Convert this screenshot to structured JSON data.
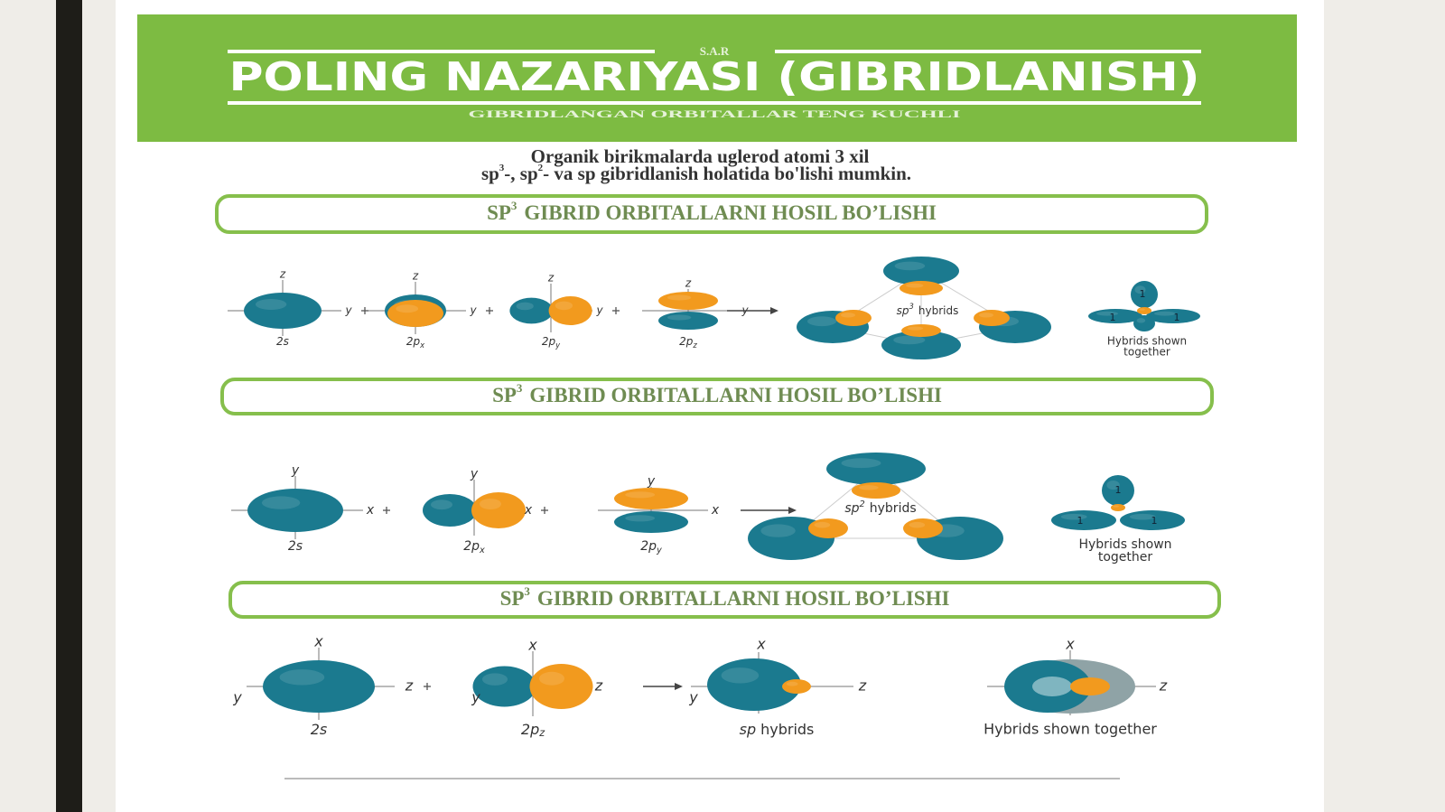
{
  "header": {
    "kicker": "S.A.R",
    "title": "POLING NAZARIYASI (GIBRIDLANISH)",
    "subtitle": "GIBRIDLANGAN ORBITALLAR TENG KUCHLI"
  },
  "intro": {
    "line1": "Organik birikmalarda uglerod atomi 3 xil",
    "line2": [
      "sp",
      "3",
      "-, sp",
      "2",
      "- va sp gibridlanish holatida bo'lishi mumkin."
    ]
  },
  "sections": [
    {
      "heading": {
        "prefix": "SP",
        "sup": "3",
        "text": "GIBRID ORBITALLARNI HOSIL BO’LISHI"
      },
      "orbitals": [
        {
          "main": "2s",
          "axes": [
            "z",
            "y"
          ]
        },
        {
          "main": "2p",
          "sub": "x",
          "axes": [
            "z",
            "y"
          ]
        },
        {
          "main": "2p",
          "sub": "y",
          "axes": [
            "z",
            "y"
          ]
        },
        {
          "main": "2p",
          "sub": "z",
          "axes": [
            "z",
            "y"
          ]
        }
      ],
      "hybrids": {
        "main": "sp",
        "sup": "3",
        "text": "hybrids"
      },
      "together": {
        "lines": [
          "Hybrids shown",
          "together"
        ],
        "lobe_labels": [
          "1",
          "1",
          "1"
        ]
      }
    },
    {
      "heading": {
        "prefix": "SP",
        "sup": "3",
        "text": "GIBRID ORBITALLARNI HOSIL BO’LISHI"
      },
      "orbitals": [
        {
          "main": "2s",
          "axes": [
            "y",
            "x"
          ]
        },
        {
          "main": "2p",
          "sub": "x",
          "axes": [
            "y",
            "x"
          ]
        },
        {
          "main": "2p",
          "sub": "y",
          "axes": [
            "y",
            "x"
          ]
        }
      ],
      "hybrids": {
        "main": "sp",
        "sup": "2",
        "text": "hybrids"
      },
      "together": {
        "lines": [
          "Hybrids shown",
          "together"
        ],
        "lobe_labels": [
          "1",
          "1",
          "1"
        ]
      }
    },
    {
      "heading": {
        "prefix": "SP",
        "sup": "3",
        "text": "GIBRID ORBITALLARNI HOSIL BO’LISHI"
      },
      "orbitals": [
        {
          "main": "2s",
          "axes": [
            "x",
            "z",
            "y"
          ]
        },
        {
          "main": "2p",
          "sub": "z",
          "axes": [
            "x",
            "z",
            "y"
          ]
        }
      ],
      "hybrids": {
        "main": "sp",
        "text": "hybrids",
        "axes": [
          "x",
          "z",
          "y"
        ]
      },
      "together": {
        "lines": [
          "Hybrids shown together"
        ],
        "axes": [
          "x",
          "z"
        ]
      }
    }
  ]
}
